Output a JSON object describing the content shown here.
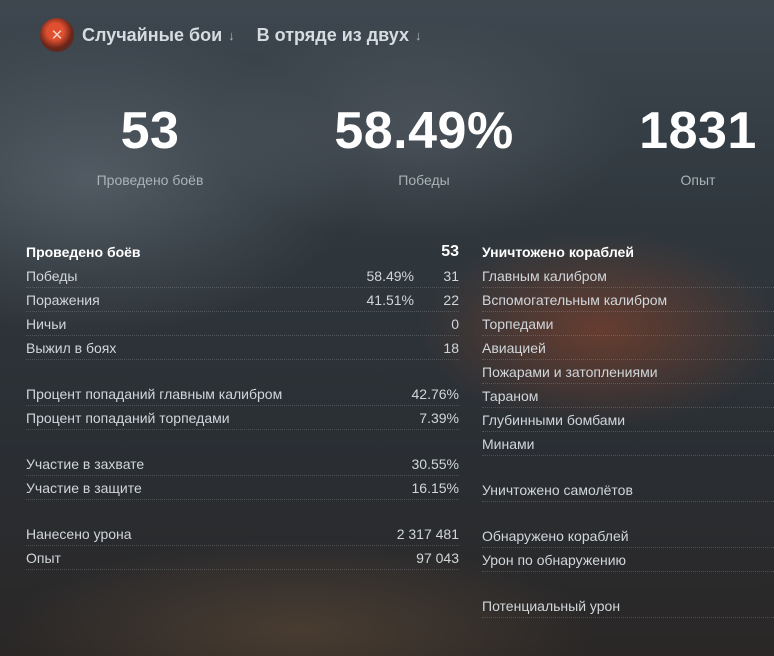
{
  "header": {
    "mode_label": "Случайные бои",
    "squad_label": "В отряде из двух",
    "arrow_icon": "↓"
  },
  "summary": {
    "battles_value": "53",
    "battles_label": "Проведено боёв",
    "winrate_value": "58.49%",
    "winrate_label": "Победы",
    "exp_value": "1831",
    "exp_label": "Опыт"
  },
  "left": {
    "head": {
      "label": "Проведено боёв",
      "value": "53"
    },
    "rows": [
      {
        "label": "Победы",
        "pct": "58.49%",
        "value": "31"
      },
      {
        "label": "Поражения",
        "pct": "41.51%",
        "value": "22"
      },
      {
        "label": "Ничьи",
        "pct": "",
        "value": "0"
      },
      {
        "label": "Выжил в боях",
        "pct": "",
        "value": "18"
      },
      {
        "label": "Процент попаданий главным калибром",
        "pct": "",
        "value": "42.76%"
      },
      {
        "label": "Процент попаданий торпедами",
        "pct": "",
        "value": "7.39%"
      },
      {
        "label": "Участие в захвате",
        "pct": "",
        "value": "30.55%"
      },
      {
        "label": "Участие в защите",
        "pct": "",
        "value": "16.15%"
      },
      {
        "label": "Нанесено урона",
        "pct": "",
        "value": "2 317 481"
      },
      {
        "label": "Опыт",
        "pct": "",
        "value": "97 043"
      }
    ]
  },
  "right": {
    "head": {
      "label": "Уничтожено кораблей"
    },
    "rows": [
      {
        "label": "Главным калибром"
      },
      {
        "label": "Вспомогательным калибром"
      },
      {
        "label": "Торпедами"
      },
      {
        "label": "Авиацией"
      },
      {
        "label": "Пожарами и затоплениями"
      },
      {
        "label": "Тараном"
      },
      {
        "label": "Глубинными бомбами"
      },
      {
        "label": "Минами"
      },
      {
        "label": "Уничтожено самолётов"
      },
      {
        "label": "Обнаружено кораблей"
      },
      {
        "label": "Урон по обнаружению"
      },
      {
        "label": "Потенциальный урон"
      }
    ]
  }
}
